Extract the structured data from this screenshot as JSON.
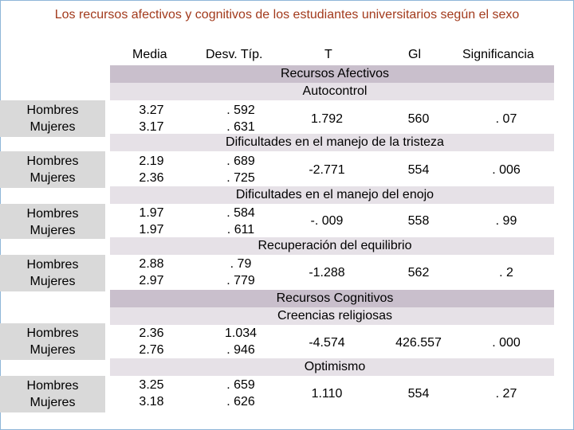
{
  "title": "Los recursos afectivos y cognitivos de los estudiantes universitarios según el sexo",
  "headers": [
    "Media",
    "Desv. Típ.",
    "T",
    "Gl",
    "Significancia"
  ],
  "section_headers": {
    "afectivos": "Recursos Afectivos",
    "cognitivos": "Recursos Cognitivos"
  },
  "rows": [
    {
      "label": "Autocontrol",
      "group": [
        "Hombres",
        "Mujeres"
      ],
      "media": [
        "3.27",
        "3.17"
      ],
      "desv": [
        ". 592",
        ". 631"
      ],
      "t": "1.792",
      "gl": "560",
      "sig": ". 07"
    },
    {
      "label": "Dificultades en el manejo de la tristeza",
      "group": [
        "Hombres",
        "Mujeres"
      ],
      "media": [
        "2.19",
        "2.36"
      ],
      "desv": [
        ". 689",
        ". 725"
      ],
      "t": "-2.771",
      "gl": "554",
      "sig": ". 006"
    },
    {
      "label": "Dificultades en el manejo del enojo",
      "group": [
        "Hombres",
        "Mujeres"
      ],
      "media": [
        "1.97",
        "1.97"
      ],
      "desv": [
        ". 584",
        ". 611"
      ],
      "t": "-. 009",
      "gl": "558",
      "sig": ". 99"
    },
    {
      "label": "Recuperación del equilibrio",
      "group": [
        "Hombres",
        "Mujeres"
      ],
      "media": [
        "2.88",
        "2.97"
      ],
      "desv": [
        ". 79",
        ". 779"
      ],
      "t": "-1.288",
      "gl": "562",
      "sig": ". 2"
    },
    {
      "label": "Creencias religiosas",
      "group": [
        "Hombres",
        "Mujeres"
      ],
      "media": [
        "2.36",
        "2.76"
      ],
      "desv": [
        "1.034",
        ". 946"
      ],
      "t": "-4.574",
      "gl": "426.557",
      "sig": ". 000"
    },
    {
      "label": "Optimismo",
      "group": [
        "Hombres",
        "Mujeres"
      ],
      "media": [
        "3.25",
        "3.18"
      ],
      "desv": [
        ". 659",
        ". 626"
      ],
      "t": "1.110",
      "gl": "554",
      "sig": ". 27"
    }
  ],
  "colors": {
    "title": "#a23a1c",
    "band_dark": "#c9bfcc",
    "band_light": "#e6e1e7",
    "row_head": "#d9d9d9"
  }
}
